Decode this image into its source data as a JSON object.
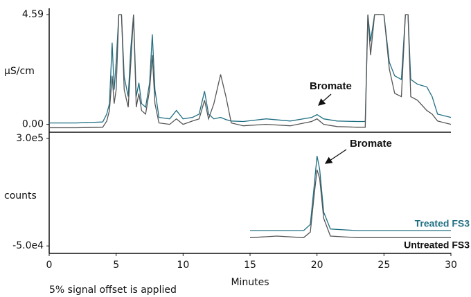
{
  "chart_data": [
    {
      "type": "line",
      "ylabel": "µS/cm",
      "annotation": "Bromate",
      "xlim": [
        0,
        30
      ],
      "ylim": [
        -0.3,
        4.8
      ],
      "yticks": [
        {
          "value": 0,
          "label": "0.00"
        },
        4.59
      ],
      "x": [
        0,
        2,
        4,
        4.3,
        4.5,
        4.7,
        4.85,
        5.0,
        5.2,
        5.4,
        5.6,
        5.9,
        6.1,
        6.3,
        6.5,
        6.7,
        6.9,
        7.2,
        7.5,
        7.7,
        7.9,
        8.2,
        9.0,
        9.5,
        10.0,
        10.7,
        11.2,
        11.6,
        11.9,
        12.3,
        12.8,
        13.2,
        13.6,
        14.5,
        16.2,
        18,
        19.6,
        20.0,
        20.5,
        21.5,
        23.0,
        23.6,
        23.8,
        24.0,
        24.3,
        24.6,
        25.0,
        25.4,
        25.8,
        26.3,
        26.6,
        26.8,
        27.0,
        27.5,
        28.2,
        28.6,
        29.0,
        30
      ],
      "series": [
        {
          "name": "Treated FS3",
          "color": "#1f6e82",
          "values": [
            0.06,
            0.06,
            0.1,
            0.43,
            0.87,
            3.42,
            1.45,
            2.6,
            4.59,
            4.59,
            2.0,
            1.16,
            3.2,
            4.59,
            1.16,
            1.74,
            0.87,
            0.72,
            1.74,
            3.77,
            1.45,
            0.29,
            0.23,
            0.58,
            0.23,
            0.29,
            0.43,
            1.39,
            0.43,
            0.23,
            0.29,
            0.2,
            0.14,
            0.12,
            0.23,
            0.14,
            0.29,
            0.41,
            0.23,
            0.14,
            0.12,
            0.12,
            4.59,
            3.48,
            4.59,
            4.59,
            4.59,
            2.6,
            2.03,
            1.88,
            4.59,
            4.59,
            1.88,
            1.68,
            1.57,
            1.16,
            0.43,
            0.29
          ]
        },
        {
          "name": "Untreated FS3",
          "color": "#555555",
          "values": [
            -0.14,
            -0.14,
            -0.12,
            0.14,
            0.58,
            2.03,
            0.87,
            1.45,
            4.59,
            4.59,
            1.45,
            0.72,
            2.6,
            4.59,
            0.72,
            1.3,
            0.58,
            0.43,
            1.45,
            2.9,
            0.87,
            0.06,
            0,
            0.23,
            0,
            0.14,
            0.23,
            1.01,
            0.23,
            0.87,
            2.09,
            1.16,
            0.06,
            -0.06,
            0,
            -0.06,
            0.12,
            0.23,
            0,
            -0.09,
            -0.12,
            -0.12,
            4.59,
            2.9,
            4.59,
            4.59,
            4.59,
            2.32,
            1.3,
            1.16,
            4.59,
            4.59,
            1.16,
            1.01,
            0.58,
            0.43,
            0.14,
            0
          ]
        }
      ]
    },
    {
      "type": "line",
      "ylabel": "counts",
      "xlabel": "Minutes",
      "annotation": "Bromate",
      "footnote": "5% signal offset is applied",
      "xlim": [
        0,
        30
      ],
      "xticks": [
        0,
        5,
        10,
        15,
        20,
        25,
        30
      ],
      "ylim": [
        -72000,
        318000
      ],
      "yticks": [
        {
          "value": -50000,
          "label": "-5.0e4"
        },
        {
          "value": 300000,
          "label": "3.0e5"
        }
      ],
      "x": [
        15,
        17,
        19,
        19.5,
        19.8,
        20.0,
        20.2,
        20.5,
        21,
        23,
        26,
        30
      ],
      "series": [
        {
          "name": "Treated FS3",
          "color": "#1f6e82",
          "values": [
            0,
            0,
            0,
            20000,
            150000,
            243000,
            200000,
            60000,
            5000,
            0,
            0,
            0
          ]
        },
        {
          "name": "Untreated FS3",
          "color": "#555555",
          "values": [
            -23000,
            -18000,
            -23000,
            -5000,
            120000,
            198000,
            170000,
            40000,
            -18000,
            -23000,
            -23000,
            -23000
          ]
        }
      ]
    }
  ]
}
